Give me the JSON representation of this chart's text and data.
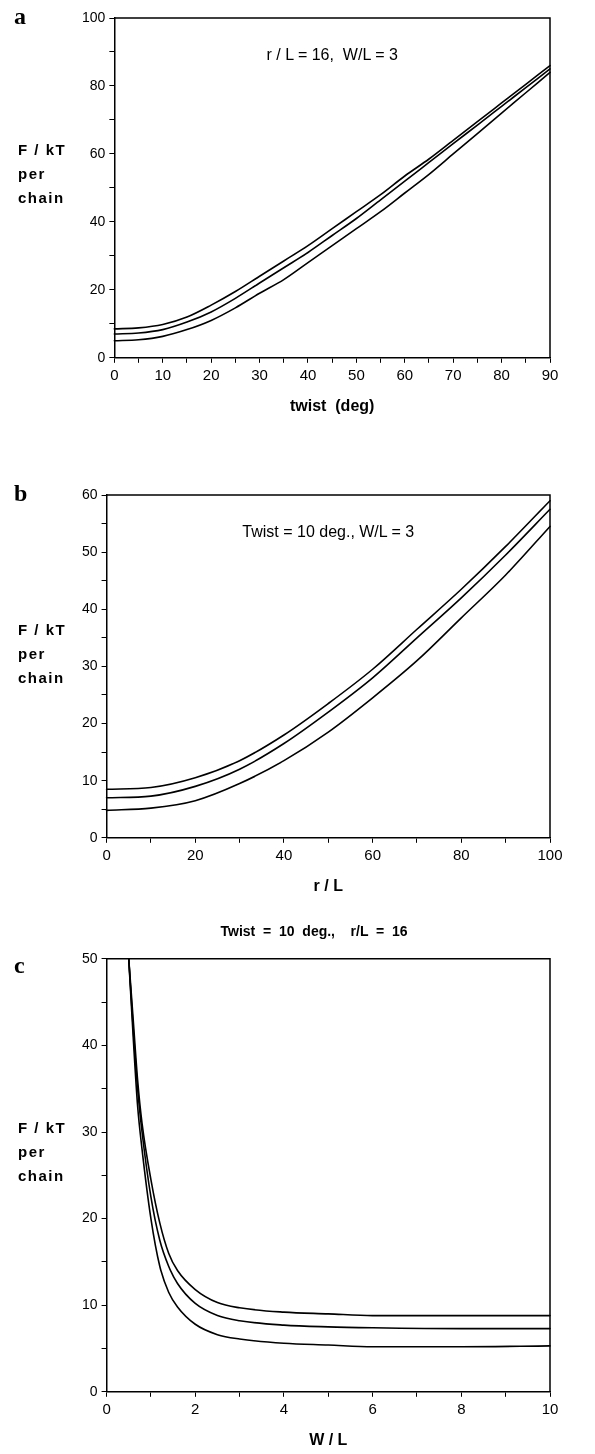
{
  "chart_data": [
    {
      "type": "line",
      "annotations": [
        "a",
        "r / L = 16,  W/L = 3"
      ],
      "xlabel": "twist  (deg)",
      "ylabel": "F / kT per chain",
      "marker": "none",
      "x": [
        0,
        5,
        10,
        15,
        20,
        25,
        30,
        35,
        40,
        45,
        50,
        55,
        60,
        65,
        70,
        75,
        80,
        85,
        90
      ],
      "xlim": [
        0,
        90
      ],
      "xticks": [
        0,
        {
          "value": 5,
          "label": null
        },
        10,
        {
          "value": 15,
          "label": null
        },
        20,
        {
          "value": 25,
          "label": null
        },
        30,
        {
          "value": 35,
          "label": null
        },
        40,
        {
          "value": 45,
          "label": null
        },
        50,
        {
          "value": 55,
          "label": null
        },
        60,
        {
          "value": 65,
          "label": null
        },
        70,
        {
          "value": 75,
          "label": null
        },
        80,
        {
          "value": 85,
          "label": null
        },
        90
      ],
      "ylim": [
        0,
        100
      ],
      "yticks": [
        0,
        {
          "value": 10,
          "label": null
        },
        20,
        {
          "value": 30,
          "label": null
        },
        40,
        {
          "value": 50,
          "label": null
        },
        60,
        {
          "value": 70,
          "label": null
        },
        80,
        {
          "value": 90,
          "label": null
        },
        100
      ],
      "series": [
        {
          "color": "#000000",
          "values": [
            8.5,
            8.8,
            9.8,
            12,
            15.5,
            19.5,
            24,
            28.5,
            33,
            38,
            43,
            48,
            53.5,
            58.5,
            64,
            69.5,
            75,
            80.5,
            86
          ]
        },
        {
          "color": "#000000",
          "values": [
            7,
            7.3,
            8.3,
            10.5,
            13.5,
            17.5,
            22,
            26.5,
            31,
            36,
            41,
            46.5,
            52,
            57.5,
            63,
            68.5,
            74,
            79.5,
            85
          ]
        },
        {
          "color": "#000000",
          "values": [
            5,
            5.3,
            6.3,
            8.3,
            11,
            14.7,
            19,
            23,
            28,
            33,
            38,
            43,
            48.5,
            54,
            60,
            66,
            72,
            78,
            84
          ]
        }
      ]
    },
    {
      "type": "line",
      "annotations": [
        "b",
        "Twist = 10 deg., W/L = 3"
      ],
      "xlabel": "r / L",
      "ylabel": "F / kT per chain",
      "marker": "none",
      "x": [
        0,
        10,
        20,
        30,
        40,
        50,
        60,
        70,
        80,
        90,
        100
      ],
      "xlim": [
        0,
        100
      ],
      "xticks": [
        0,
        {
          "value": 10,
          "label": null
        },
        20,
        {
          "value": 30,
          "label": null
        },
        40,
        {
          "value": 50,
          "label": null
        },
        60,
        {
          "value": 70,
          "label": null
        },
        80,
        {
          "value": 90,
          "label": null
        },
        100
      ],
      "ylim": [
        0,
        60
      ],
      "yticks": [
        0,
        {
          "value": 5,
          "label": null
        },
        10,
        {
          "value": 15,
          "label": null
        },
        20,
        {
          "value": 25,
          "label": null
        },
        30,
        {
          "value": 35,
          "label": null
        },
        40,
        {
          "value": 45,
          "label": null
        },
        50,
        {
          "value": 55,
          "label": null
        },
        60
      ],
      "series": [
        {
          "color": "#000000",
          "values": [
            8.5,
            8.8,
            10.5,
            13.5,
            18,
            23.5,
            29.5,
            36.5,
            43.5,
            51,
            59
          ]
        },
        {
          "color": "#000000",
          "values": [
            7,
            7.3,
            9,
            12,
            16.5,
            22,
            28,
            35,
            42,
            49.5,
            57.5
          ]
        },
        {
          "color": "#000000",
          "values": [
            4.8,
            5.2,
            6.5,
            9.5,
            13.5,
            18.5,
            24.5,
            31,
            38.5,
            46,
            54.5
          ]
        }
      ]
    },
    {
      "type": "line",
      "title": "Twist  =  10  deg.,    r/L  =  16",
      "annotations": [
        "c"
      ],
      "xlabel": "W / L",
      "ylabel": "F / kT per chain",
      "marker": "none",
      "x": [
        0.5,
        0.6,
        0.7,
        0.8,
        1.0,
        1.2,
        1.4,
        1.6,
        2,
        2.5,
        3,
        4,
        5,
        6,
        8,
        10
      ],
      "xlim": [
        0,
        10
      ],
      "xticks": [
        0,
        {
          "value": 1,
          "label": null
        },
        2,
        {
          "value": 3,
          "label": null
        },
        4,
        {
          "value": 5,
          "label": null
        },
        6,
        {
          "value": 7,
          "label": null
        },
        8,
        {
          "value": 9,
          "label": null
        },
        10
      ],
      "ylim": [
        0,
        50
      ],
      "yticks": [
        0,
        {
          "value": 5,
          "label": null
        },
        10,
        {
          "value": 15,
          "label": null
        },
        20,
        {
          "value": 25,
          "label": null
        },
        30,
        {
          "value": 35,
          "label": null
        },
        40,
        {
          "value": 45,
          "label": null
        },
        50
      ],
      "series": [
        {
          "color": "#000000",
          "values": [
            50,
            43,
            36,
            31,
            24.5,
            19.5,
            16,
            14,
            11.8,
            10.3,
            9.7,
            9.2,
            9,
            8.8,
            8.8,
            8.8
          ]
        },
        {
          "color": "#000000",
          "values": [
            50,
            42,
            35,
            30,
            22.5,
            17.5,
            14.5,
            12.5,
            10.2,
            8.8,
            8.2,
            7.7,
            7.5,
            7.4,
            7.3,
            7.3
          ]
        },
        {
          "color": "#000000",
          "values": [
            50,
            41,
            33,
            28,
            20,
            14.5,
            11.5,
            9.8,
            7.8,
            6.6,
            6.1,
            5.6,
            5.4,
            5.2,
            5.2,
            5.3
          ]
        }
      ]
    }
  ]
}
